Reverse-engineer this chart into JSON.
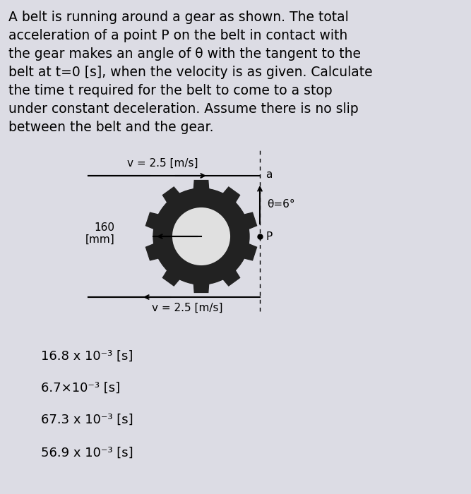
{
  "background_color": "#dcdce4",
  "title_lines": [
    "A belt is running around a gear as shown. The total",
    "acceleration of a point P on the belt in contact with",
    "the gear makes an angle of θ with the tangent to the",
    "belt at t=0 [s], when the velocity is as given. Calculate",
    "the time t required for the belt to come to a stop",
    "under constant deceleration. Assume there is no slip",
    "between the belt and the gear."
  ],
  "title_fontsize": 13.5,
  "gear_color": "#222222",
  "gear_hole_color": "#e0e0e0",
  "outer_ring_color": "#333333",
  "num_teeth": 10,
  "v_top_label": "v = 2.5 [m/s]",
  "v_bottom_label": "v = 2.5 [m/s]",
  "dim_label": "160\n[mm]",
  "theta_label": "θ=6°",
  "a_label": "a",
  "P_label": "P",
  "options": [
    "16.8 x 10⁻³ [s]",
    "6.7×10⁻³ [s]",
    "67.3 x 10⁻³ [s]",
    "56.9 x 10⁻³ [s]"
  ],
  "option_fontsize": 13,
  "text_fontsize": 11,
  "label_fontsize": 11
}
